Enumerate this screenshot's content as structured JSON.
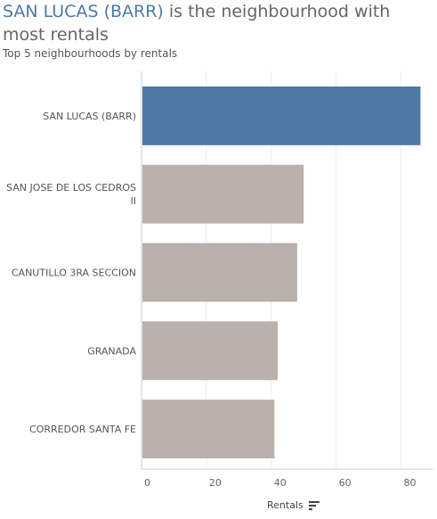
{
  "title": {
    "highlight": "SAN LUCAS (BARR)",
    "rest": " is the neighbourhood with most rentals"
  },
  "subtitle": "Top 5 neighbourhoods by rentals",
  "colors": {
    "highlight": "#4e79a7",
    "other": "#bab0ac",
    "grid": "#eeeeee",
    "axis": "#cccccc"
  },
  "axis": {
    "title": "Rentals",
    "sort_icon": "sort-descending-icon"
  },
  "chart_data": {
    "type": "bar",
    "orientation": "horizontal",
    "title": "SAN LUCAS (BARR) is the neighbourhood with most rentals",
    "subtitle": "Top 5 neighbourhoods by rentals",
    "categories": [
      [
        "SAN LUCAS (BARR)"
      ],
      [
        "SAN JOSE DE LOS CEDROS",
        "II"
      ],
      [
        "CANUTILLO 3RA SECCION"
      ],
      [
        "GRANADA"
      ],
      [
        "CORREDOR SANTA FE"
      ]
    ],
    "values": [
      86,
      50,
      48,
      42,
      41
    ],
    "highlighted": [
      true,
      false,
      false,
      false,
      false
    ],
    "xlabel": "Rentals",
    "xlim": [
      0,
      90
    ],
    "xticks": [
      0,
      20,
      40,
      60,
      80
    ],
    "grid": true
  }
}
